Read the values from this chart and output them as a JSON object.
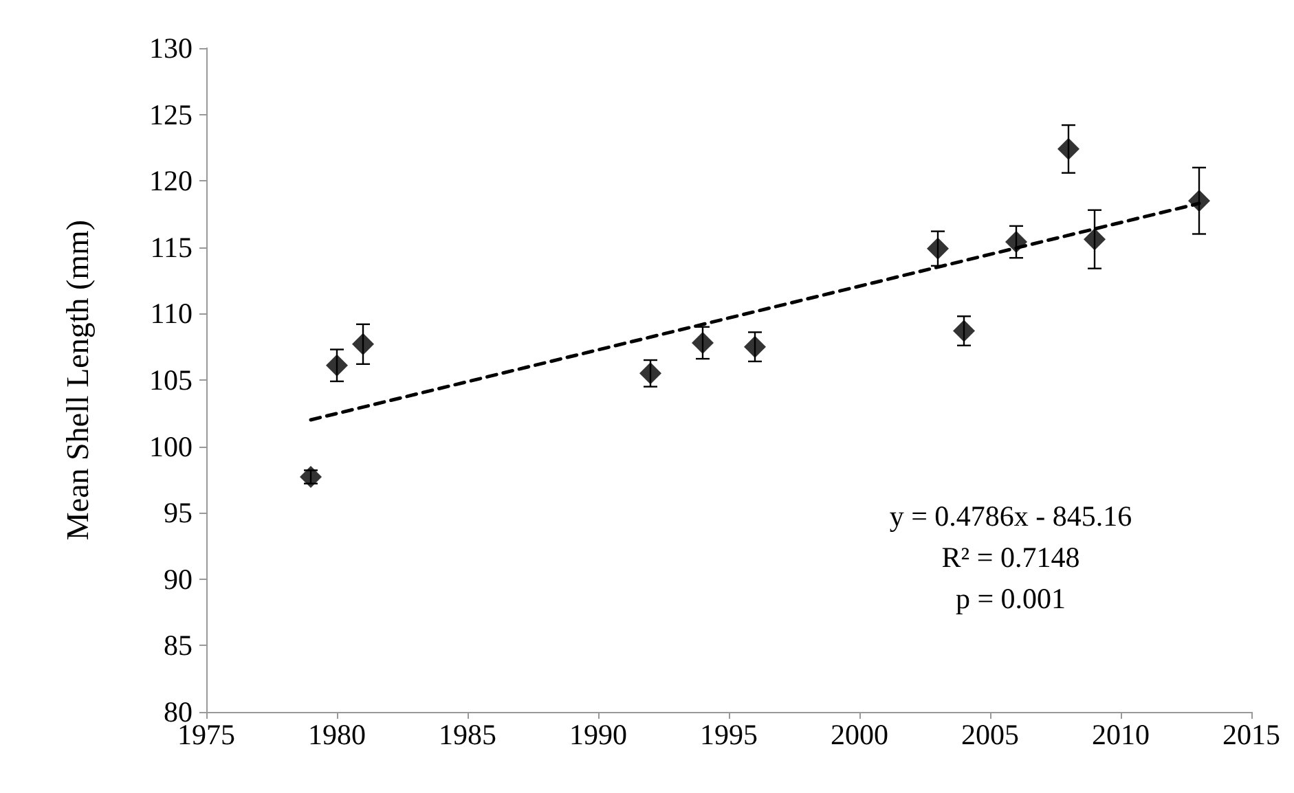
{
  "chart_data": {
    "type": "scatter",
    "ylabel": "Mean Shell Length (mm)",
    "marker": "diamond",
    "grid": false,
    "xlim": [
      1975,
      2015
    ],
    "xticks": [
      1975,
      1980,
      1985,
      1990,
      1995,
      2000,
      2005,
      2010,
      2015
    ],
    "ylim": [
      80,
      130
    ],
    "yticks": [
      80,
      85,
      90,
      95,
      100,
      105,
      110,
      115,
      120,
      125,
      130
    ],
    "series": [
      {
        "color": "#000000",
        "x": [
          1979,
          1980,
          1981,
          1992,
          1994,
          1996,
          2003,
          2004,
          2006,
          2008,
          2009,
          2013
        ],
        "values": [
          97.7,
          106.1,
          107.7,
          105.5,
          107.8,
          107.5,
          114.9,
          108.7,
          115.4,
          122.4,
          115.6,
          118.5
        ],
        "errors": [
          0.5,
          1.2,
          1.5,
          1.0,
          1.2,
          1.1,
          1.3,
          1.1,
          1.2,
          1.8,
          2.2,
          2.5
        ]
      },
      {
        "type": "line",
        "color": "#000000",
        "line_style": "dashed",
        "marker": "none",
        "x": [
          1979,
          2013
        ],
        "values": [
          102.0,
          118.3
        ]
      }
    ],
    "annotations": [
      "y = 0.4786x - 845.16",
      "R² = 0.7148",
      "p = 0.001"
    ]
  }
}
